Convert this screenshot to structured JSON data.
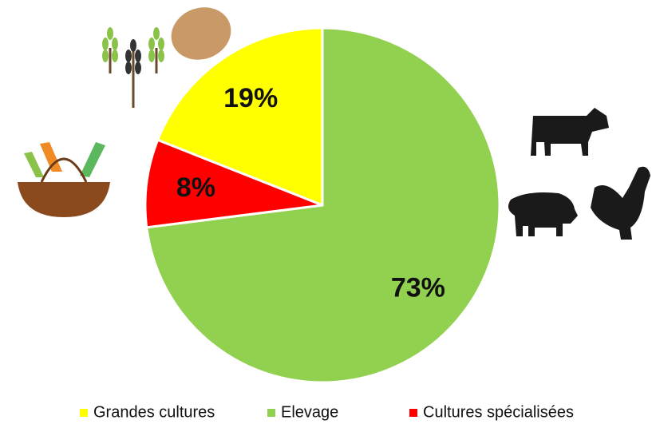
{
  "chart_data": {
    "type": "pie",
    "categories": [
      "Grandes cultures",
      "Elevage",
      "Cultures spécialisées"
    ],
    "values": [
      19,
      73,
      8
    ],
    "value_labels": [
      "19%",
      "73%",
      "8%"
    ],
    "colors": [
      "#ffff00",
      "#92d050",
      "#ff0000"
    ],
    "legend": "bottom"
  }
}
